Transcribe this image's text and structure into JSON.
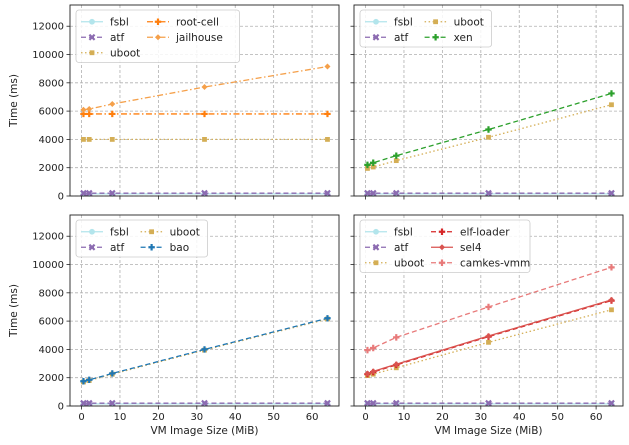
{
  "chart_data": [
    {
      "type": "line",
      "panel": "top-left",
      "ylabel": "Time (ms)",
      "xlabel": "",
      "xlim": [
        -3,
        67
      ],
      "ylim": [
        0,
        13500
      ],
      "xticks": [
        0,
        10,
        20,
        30,
        40,
        50,
        60
      ],
      "yticks": [
        0,
        2000,
        4000,
        6000,
        8000,
        10000,
        12000
      ],
      "grid": true,
      "legend": "top-left, 2 columns",
      "x": [
        0.5,
        2,
        8,
        32,
        64
      ],
      "series": [
        {
          "name": "fsbl",
          "color": "#b3e5ec",
          "linestyle": "solid",
          "marker": "circle",
          "values": [
            150,
            150,
            150,
            150,
            150
          ]
        },
        {
          "name": "atf",
          "color": "#8c6bb1",
          "linestyle": "dashed",
          "marker": "x",
          "values": [
            200,
            200,
            200,
            200,
            200
          ]
        },
        {
          "name": "uboot",
          "color": "#d4ae55",
          "linestyle": "dotted",
          "marker": "square",
          "values": [
            4000,
            4000,
            4000,
            4000,
            4000
          ]
        },
        {
          "name": "root-cell",
          "color": "#ff7f0e",
          "linestyle": "dashdot",
          "marker": "plus",
          "values": [
            5800,
            5800,
            5800,
            5800,
            5800
          ]
        },
        {
          "name": "jailhouse",
          "color": "#f5a04a",
          "linestyle": "dashdot",
          "marker": "diamond",
          "values": [
            6100,
            6150,
            6500,
            7700,
            9150
          ]
        }
      ]
    },
    {
      "type": "line",
      "panel": "top-right",
      "xlabel": "",
      "ylabel": "",
      "xlim": [
        -3,
        67
      ],
      "ylim": [
        0,
        13500
      ],
      "xticks": [
        0,
        10,
        20,
        30,
        40,
        50,
        60
      ],
      "yticks": [
        0,
        2000,
        4000,
        6000,
        8000,
        10000,
        12000
      ],
      "grid": true,
      "legend": "top-left, 2 columns",
      "x": [
        0.5,
        2,
        8,
        32,
        64
      ],
      "series": [
        {
          "name": "fsbl",
          "color": "#b3e5ec",
          "linestyle": "solid",
          "marker": "circle",
          "values": [
            150,
            150,
            150,
            150,
            150
          ]
        },
        {
          "name": "atf",
          "color": "#8c6bb1",
          "linestyle": "dashed",
          "marker": "x",
          "values": [
            200,
            200,
            200,
            200,
            200
          ]
        },
        {
          "name": "uboot",
          "color": "#d4ae55",
          "linestyle": "dotted",
          "marker": "square",
          "values": [
            1950,
            2050,
            2500,
            4150,
            6450
          ]
        },
        {
          "name": "xen",
          "color": "#2ca02c",
          "linestyle": "dashed",
          "marker": "plus",
          "values": [
            2200,
            2350,
            2850,
            4700,
            7250
          ]
        }
      ]
    },
    {
      "type": "line",
      "panel": "bottom-left",
      "ylabel": "Time (ms)",
      "xlabel": "VM Image Size (MiB)",
      "xlim": [
        -3,
        67
      ],
      "ylim": [
        0,
        13500
      ],
      "xticks": [
        0,
        10,
        20,
        30,
        40,
        50,
        60
      ],
      "yticks": [
        0,
        2000,
        4000,
        6000,
        8000,
        10000,
        12000
      ],
      "grid": true,
      "legend": "top-left, 2 columns",
      "x": [
        0.5,
        2,
        8,
        32,
        64
      ],
      "series": [
        {
          "name": "fsbl",
          "color": "#b3e5ec",
          "linestyle": "solid",
          "marker": "circle",
          "values": [
            150,
            150,
            150,
            150,
            150
          ]
        },
        {
          "name": "atf",
          "color": "#8c6bb1",
          "linestyle": "dashed",
          "marker": "x",
          "values": [
            200,
            200,
            200,
            200,
            200
          ]
        },
        {
          "name": "uboot",
          "color": "#d4ae55",
          "linestyle": "dotted",
          "marker": "square",
          "values": [
            1700,
            1800,
            2250,
            3950,
            6150
          ]
        },
        {
          "name": "bao",
          "color": "#1f77b4",
          "linestyle": "dashed",
          "marker": "plus",
          "values": [
            1750,
            1850,
            2300,
            4000,
            6200
          ]
        }
      ]
    },
    {
      "type": "line",
      "panel": "bottom-right",
      "xlabel": "VM Image Size (MiB)",
      "ylabel": "",
      "xlim": [
        -3,
        67
      ],
      "ylim": [
        0,
        13500
      ],
      "xticks": [
        0,
        10,
        20,
        30,
        40,
        50,
        60
      ],
      "yticks": [
        0,
        2000,
        4000,
        6000,
        8000,
        10000,
        12000
      ],
      "grid": true,
      "legend": "top-left, 2 columns",
      "x": [
        0.5,
        2,
        8,
        32,
        64
      ],
      "series": [
        {
          "name": "fsbl",
          "color": "#b3e5ec",
          "linestyle": "solid",
          "marker": "circle",
          "values": [
            150,
            150,
            150,
            150,
            150
          ]
        },
        {
          "name": "atf",
          "color": "#8c6bb1",
          "linestyle": "dashed",
          "marker": "x",
          "values": [
            200,
            200,
            200,
            200,
            200
          ]
        },
        {
          "name": "uboot",
          "color": "#d4ae55",
          "linestyle": "dotted",
          "marker": "square",
          "values": [
            2150,
            2250,
            2700,
            4500,
            6800
          ]
        },
        {
          "name": "elf-loader",
          "color": "#d62728",
          "linestyle": "dashed",
          "marker": "plus",
          "values": [
            2250,
            2400,
            2900,
            4900,
            7450
          ]
        },
        {
          "name": "sel4",
          "color": "#d9534f",
          "linestyle": "solid",
          "marker": "diamond",
          "values": [
            2300,
            2450,
            2950,
            4950,
            7500
          ]
        },
        {
          "name": "camkes-vmm",
          "color": "#e87a7a",
          "linestyle": "dashed",
          "marker": "plus",
          "values": [
            3950,
            4100,
            4850,
            7000,
            9800
          ]
        }
      ]
    }
  ]
}
